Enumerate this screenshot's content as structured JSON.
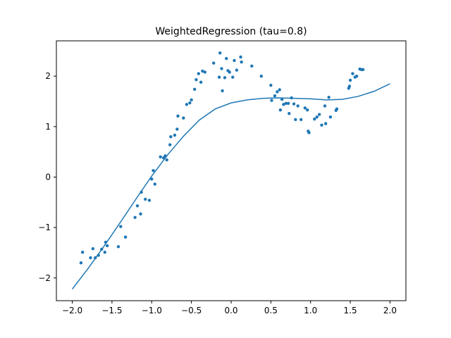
{
  "chart_data": {
    "type": "scatter",
    "title": "WeightedRegression (tau=0.8)",
    "xlabel": "",
    "ylabel": "",
    "xlim": [
      -2.2,
      2.2
    ],
    "ylim": [
      -2.45,
      2.7
    ],
    "x_ticks": [
      -2.0,
      -1.5,
      -1.0,
      -0.5,
      0.0,
      0.5,
      1.0,
      1.5,
      2.0
    ],
    "x_tick_labels": [
      "−2.0",
      "−1.5",
      "−1.0",
      "−0.5",
      "0.0",
      "0.5",
      "1.0",
      "1.5",
      "2.0"
    ],
    "y_ticks": [
      -2,
      -1,
      0,
      1,
      2
    ],
    "y_tick_labels": [
      "−2",
      "−1",
      "0",
      "1",
      "2"
    ],
    "grid": false,
    "color": "#1f77b4",
    "series": [
      {
        "kind": "scatter",
        "points": [
          [
            -1.89,
            -1.7
          ],
          [
            -1.87,
            -1.49
          ],
          [
            -1.77,
            -1.6
          ],
          [
            -1.74,
            -1.42
          ],
          [
            -1.71,
            -1.6
          ],
          [
            -1.67,
            -1.55
          ],
          [
            -1.63,
            -1.43
          ],
          [
            -1.59,
            -1.49
          ],
          [
            -1.58,
            -1.29
          ],
          [
            -1.56,
            -1.36
          ],
          [
            -1.42,
            -1.38
          ],
          [
            -1.39,
            -0.98
          ],
          [
            -1.33,
            -1.19
          ],
          [
            -1.21,
            -0.8
          ],
          [
            -1.18,
            -0.57
          ],
          [
            -1.14,
            -0.73
          ],
          [
            -1.13,
            -0.3
          ],
          [
            -1.08,
            -0.44
          ],
          [
            -1.03,
            -0.46
          ],
          [
            -1.0,
            -0.04
          ],
          [
            -0.98,
            0.13
          ],
          [
            -0.96,
            -0.14
          ],
          [
            -0.89,
            0.4
          ],
          [
            -0.85,
            0.38
          ],
          [
            -0.83,
            0.42
          ],
          [
            -0.81,
            0.34
          ],
          [
            -0.77,
            0.64
          ],
          [
            -0.76,
            0.8
          ],
          [
            -0.71,
            0.83
          ],
          [
            -0.68,
            0.95
          ],
          [
            -0.67,
            1.21
          ],
          [
            -0.6,
            1.17
          ],
          [
            -0.56,
            1.44
          ],
          [
            -0.52,
            1.47
          ],
          [
            -0.5,
            1.53
          ],
          [
            -0.46,
            1.74
          ],
          [
            -0.44,
            1.93
          ],
          [
            -0.41,
            2.05
          ],
          [
            -0.38,
            1.88
          ],
          [
            -0.36,
            2.1
          ],
          [
            -0.33,
            2.08
          ],
          [
            -0.22,
            2.26
          ],
          [
            -0.15,
            1.98
          ],
          [
            -0.14,
            2.46
          ],
          [
            -0.12,
            2.15
          ],
          [
            -0.11,
            1.71
          ],
          [
            -0.08,
            1.97
          ],
          [
            -0.06,
            2.35
          ],
          [
            -0.04,
            2.11
          ],
          [
            -0.02,
            2.08
          ],
          [
            0.02,
            1.98
          ],
          [
            0.04,
            2.31
          ],
          [
            0.07,
            2.12
          ],
          [
            0.12,
            2.38
          ],
          [
            0.13,
            2.28
          ],
          [
            0.26,
            2.2
          ],
          [
            0.38,
            2.0
          ],
          [
            0.5,
            1.82
          ],
          [
            0.51,
            1.52
          ],
          [
            0.55,
            1.61
          ],
          [
            0.58,
            1.69
          ],
          [
            0.61,
            1.73
          ],
          [
            0.62,
            1.33
          ],
          [
            0.64,
            1.54
          ],
          [
            0.66,
            1.44
          ],
          [
            0.69,
            1.46
          ],
          [
            0.72,
            1.46
          ],
          [
            0.73,
            1.26
          ],
          [
            0.76,
            1.57
          ],
          [
            0.79,
            1.45
          ],
          [
            0.81,
            1.14
          ],
          [
            0.84,
            1.41
          ],
          [
            0.88,
            1.14
          ],
          [
            0.93,
            1.37
          ],
          [
            0.96,
            1.33
          ],
          [
            0.97,
            0.91
          ],
          [
            0.98,
            0.88
          ],
          [
            1.05,
            1.15
          ],
          [
            1.08,
            1.19
          ],
          [
            1.11,
            1.24
          ],
          [
            1.14,
            1.03
          ],
          [
            1.18,
            1.41
          ],
          [
            1.19,
            1.06
          ],
          [
            1.23,
            1.58
          ],
          [
            1.25,
            1.19
          ],
          [
            1.32,
            1.32
          ],
          [
            1.33,
            1.35
          ],
          [
            1.48,
            1.76
          ],
          [
            1.49,
            1.8
          ],
          [
            1.5,
            1.92
          ],
          [
            1.53,
            2.05
          ],
          [
            1.56,
            1.98
          ],
          [
            1.58,
            2.0
          ],
          [
            1.62,
            2.14
          ],
          [
            1.64,
            2.13
          ],
          [
            1.66,
            2.13
          ]
        ]
      },
      {
        "kind": "line",
        "points": [
          [
            -2.0,
            -2.22
          ],
          [
            -1.8,
            -1.81
          ],
          [
            -1.6,
            -1.37
          ],
          [
            -1.4,
            -0.91
          ],
          [
            -1.2,
            -0.44
          ],
          [
            -1.0,
            0.02
          ],
          [
            -0.8,
            0.44
          ],
          [
            -0.6,
            0.81
          ],
          [
            -0.4,
            1.13
          ],
          [
            -0.2,
            1.35
          ],
          [
            0.0,
            1.47
          ],
          [
            0.2,
            1.53
          ],
          [
            0.4,
            1.56
          ],
          [
            0.6,
            1.57
          ],
          [
            0.8,
            1.56
          ],
          [
            1.0,
            1.55
          ],
          [
            1.2,
            1.53
          ],
          [
            1.4,
            1.54
          ],
          [
            1.6,
            1.6
          ],
          [
            1.8,
            1.7
          ],
          [
            2.0,
            1.85
          ]
        ]
      }
    ]
  }
}
